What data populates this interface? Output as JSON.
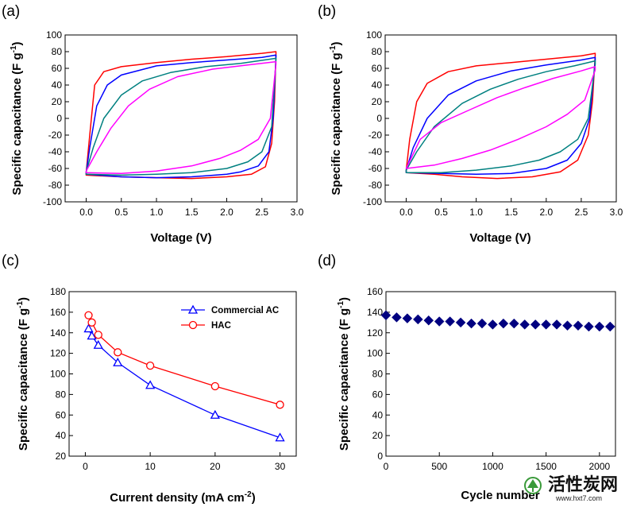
{
  "colors": {
    "red": "#ff0000",
    "blue": "#0000ff",
    "teal": "#008080",
    "magenta": "#ff00ff",
    "navy": "#000080"
  },
  "chart_data": [
    {
      "id": "a",
      "panel_label": "(a)",
      "type": "line",
      "xlabel": "Voltage (V)",
      "ylabel": "Specific capacitance (F g",
      "ylabel_sup": "-1",
      "ylabel_close": ")",
      "xlim": [
        -0.3,
        3.0
      ],
      "ylim": [
        -100,
        100
      ],
      "xticks": [
        0.0,
        0.5,
        1.0,
        1.5,
        2.0,
        2.5,
        3.0
      ],
      "xtick_labels": [
        "0.0",
        "0.5",
        "1.0",
        "1.5",
        "2.0",
        "2.5",
        "3.0"
      ],
      "yticks": [
        -100,
        -80,
        -60,
        -40,
        -20,
        0,
        20,
        40,
        60,
        80,
        100
      ],
      "ytick_labels": [
        "-100",
        "-80",
        "-60",
        "-40",
        "-20",
        "0",
        "20",
        "40",
        "60",
        "80",
        "100"
      ],
      "series": [
        {
          "color": "#ff0000",
          "upper": [
            [
              0,
              -65
            ],
            [
              0.05,
              -20
            ],
            [
              0.12,
              40
            ],
            [
              0.25,
              56
            ],
            [
              0.5,
              62
            ],
            [
              1.0,
              67
            ],
            [
              1.5,
              71
            ],
            [
              2.0,
              74
            ],
            [
              2.5,
              78
            ],
            [
              2.7,
              80
            ]
          ],
          "lower": [
            [
              2.7,
              78
            ],
            [
              2.68,
              20
            ],
            [
              2.64,
              -30
            ],
            [
              2.55,
              -58
            ],
            [
              2.35,
              -67
            ],
            [
              2.0,
              -70
            ],
            [
              1.5,
              -72
            ],
            [
              1.0,
              -71
            ],
            [
              0.5,
              -70
            ],
            [
              0,
              -68
            ]
          ]
        },
        {
          "color": "#0000ff",
          "upper": [
            [
              0,
              -65
            ],
            [
              0.05,
              -35
            ],
            [
              0.15,
              15
            ],
            [
              0.3,
              40
            ],
            [
              0.5,
              52
            ],
            [
              1.0,
              63
            ],
            [
              1.5,
              67
            ],
            [
              2.0,
              70
            ],
            [
              2.5,
              73
            ],
            [
              2.7,
              76
            ]
          ],
          "lower": [
            [
              2.7,
              74
            ],
            [
              2.66,
              0
            ],
            [
              2.6,
              -40
            ],
            [
              2.45,
              -57
            ],
            [
              2.2,
              -64
            ],
            [
              2.0,
              -67
            ],
            [
              1.5,
              -70
            ],
            [
              1.0,
              -71
            ],
            [
              0.5,
              -70
            ],
            [
              0,
              -67
            ]
          ]
        },
        {
          "color": "#008080",
          "upper": [
            [
              0,
              -64
            ],
            [
              0.1,
              -35
            ],
            [
              0.25,
              0
            ],
            [
              0.5,
              28
            ],
            [
              0.8,
              45
            ],
            [
              1.2,
              55
            ],
            [
              1.7,
              62
            ],
            [
              2.2,
              66
            ],
            [
              2.7,
              72
            ]
          ],
          "lower": [
            [
              2.7,
              70
            ],
            [
              2.64,
              -10
            ],
            [
              2.5,
              -40
            ],
            [
              2.3,
              -52
            ],
            [
              2.0,
              -60
            ],
            [
              1.5,
              -65
            ],
            [
              1.0,
              -67
            ],
            [
              0.5,
              -68
            ],
            [
              0,
              -67
            ]
          ]
        },
        {
          "color": "#ff00ff",
          "upper": [
            [
              0,
              -63
            ],
            [
              0.15,
              -40
            ],
            [
              0.35,
              -12
            ],
            [
              0.6,
              15
            ],
            [
              0.9,
              35
            ],
            [
              1.3,
              50
            ],
            [
              1.8,
              59
            ],
            [
              2.3,
              64
            ],
            [
              2.7,
              68
            ]
          ],
          "lower": [
            [
              2.7,
              65
            ],
            [
              2.62,
              0
            ],
            [
              2.45,
              -25
            ],
            [
              2.2,
              -38
            ],
            [
              1.9,
              -48
            ],
            [
              1.5,
              -57
            ],
            [
              1.0,
              -63
            ],
            [
              0.5,
              -66
            ],
            [
              0,
              -65
            ]
          ]
        }
      ]
    },
    {
      "id": "b",
      "panel_label": "(b)",
      "type": "line",
      "xlabel": "Voltage (V)",
      "ylabel": "Specific capacitance (F g",
      "ylabel_sup": "-1",
      "ylabel_close": ")",
      "xlim": [
        -0.3,
        3.0
      ],
      "ylim": [
        -100,
        100
      ],
      "xticks": [
        0.0,
        0.5,
        1.0,
        1.5,
        2.0,
        2.5,
        3.0
      ],
      "xtick_labels": [
        "0.0",
        "0.5",
        "1.0",
        "1.5",
        "2.0",
        "2.5",
        "3.0"
      ],
      "yticks": [
        -100,
        -80,
        -60,
        -40,
        -20,
        0,
        20,
        40,
        60,
        80,
        100
      ],
      "ytick_labels": [
        "-100",
        "-80",
        "-60",
        "-40",
        "-20",
        "0",
        "20",
        "40",
        "60",
        "80",
        "100"
      ],
      "series": [
        {
          "color": "#ff0000",
          "upper": [
            [
              0,
              -62
            ],
            [
              0.05,
              -25
            ],
            [
              0.15,
              20
            ],
            [
              0.3,
              42
            ],
            [
              0.6,
              56
            ],
            [
              1.0,
              63
            ],
            [
              1.5,
              67
            ],
            [
              2.0,
              71
            ],
            [
              2.5,
              75
            ],
            [
              2.7,
              78
            ]
          ],
          "lower": [
            [
              2.7,
              76
            ],
            [
              2.66,
              20
            ],
            [
              2.6,
              -20
            ],
            [
              2.45,
              -50
            ],
            [
              2.2,
              -64
            ],
            [
              1.8,
              -70
            ],
            [
              1.3,
              -72
            ],
            [
              0.8,
              -70
            ],
            [
              0.4,
              -67
            ],
            [
              0,
              -65
            ]
          ]
        },
        {
          "color": "#0000ff",
          "upper": [
            [
              0,
              -62
            ],
            [
              0.1,
              -35
            ],
            [
              0.3,
              0
            ],
            [
              0.6,
              28
            ],
            [
              1.0,
              45
            ],
            [
              1.5,
              57
            ],
            [
              2.0,
              64
            ],
            [
              2.5,
              70
            ],
            [
              2.7,
              73
            ]
          ],
          "lower": [
            [
              2.7,
              70
            ],
            [
              2.62,
              0
            ],
            [
              2.5,
              -30
            ],
            [
              2.3,
              -50
            ],
            [
              2.0,
              -60
            ],
            [
              1.5,
              -66
            ],
            [
              1.0,
              -67
            ],
            [
              0.5,
              -66
            ],
            [
              0,
              -65
            ]
          ]
        },
        {
          "color": "#008080",
          "upper": [
            [
              0,
              -62
            ],
            [
              0.15,
              -40
            ],
            [
              0.4,
              -10
            ],
            [
              0.8,
              18
            ],
            [
              1.2,
              35
            ],
            [
              1.6,
              47
            ],
            [
              2.0,
              56
            ],
            [
              2.4,
              63
            ],
            [
              2.7,
              69
            ]
          ],
          "lower": [
            [
              2.7,
              65
            ],
            [
              2.6,
              0
            ],
            [
              2.45,
              -25
            ],
            [
              2.2,
              -40
            ],
            [
              1.9,
              -50
            ],
            [
              1.5,
              -57
            ],
            [
              1.0,
              -62
            ],
            [
              0.5,
              -65
            ],
            [
              0,
              -65
            ]
          ]
        },
        {
          "color": "#ff00ff",
          "upper": [
            [
              0,
              -60
            ],
            [
              0.2,
              -25
            ],
            [
              0.5,
              -5
            ],
            [
              0.9,
              10
            ],
            [
              1.3,
              25
            ],
            [
              1.7,
              37
            ],
            [
              2.1,
              48
            ],
            [
              2.5,
              57
            ],
            [
              2.7,
              62
            ]
          ],
          "lower": [
            [
              2.7,
              58
            ],
            [
              2.55,
              22
            ],
            [
              2.3,
              5
            ],
            [
              2.0,
              -10
            ],
            [
              1.6,
              -25
            ],
            [
              1.2,
              -38
            ],
            [
              0.8,
              -48
            ],
            [
              0.4,
              -56
            ],
            [
              0,
              -60
            ]
          ]
        }
      ]
    },
    {
      "id": "c",
      "panel_label": "(c)",
      "type": "line",
      "xlabel": "Current density (mA cm",
      "xlabel_sup": "-2",
      "xlabel_close": ")",
      "ylabel": "Specific capacitance (F g",
      "ylabel_sup": "-1",
      "ylabel_close": ")",
      "xlim": [
        -2.5,
        32.5
      ],
      "ylim": [
        20,
        180
      ],
      "xticks": [
        0,
        10,
        20,
        30
      ],
      "xtick_labels": [
        "0",
        "10",
        "20",
        "30"
      ],
      "yticks": [
        20,
        40,
        60,
        80,
        100,
        120,
        140,
        160,
        180
      ],
      "ytick_labels": [
        "20",
        "40",
        "60",
        "80",
        "100",
        "120",
        "140",
        "160",
        "180"
      ],
      "legend": {
        "position": "top-right"
      },
      "series": [
        {
          "name": "Commercial AC",
          "color": "#0000ff",
          "marker": "triangle",
          "x": [
            0.5,
            1,
            2,
            5,
            10,
            20,
            30
          ],
          "y": [
            144,
            137,
            128,
            111,
            89,
            60,
            38
          ]
        },
        {
          "name": "HAC",
          "color": "#ff0000",
          "marker": "circle",
          "x": [
            0.5,
            1,
            2,
            5,
            10,
            20,
            30
          ],
          "y": [
            157,
            150,
            138,
            121,
            108,
            88,
            70
          ]
        }
      ]
    },
    {
      "id": "d",
      "panel_label": "(d)",
      "type": "scatter",
      "xlabel": "Cycle number",
      "ylabel": "Specific capacitance (F g",
      "ylabel_sup": "-1",
      "ylabel_close": ")",
      "xlim": [
        0,
        2150
      ],
      "ylim": [
        0,
        160
      ],
      "xticks": [
        0,
        500,
        1000,
        1500,
        2000
      ],
      "xtick_labels": [
        "0",
        "500",
        "1000",
        "1500",
        "2000"
      ],
      "yticks": [
        0,
        20,
        40,
        60,
        80,
        100,
        120,
        140,
        160
      ],
      "ytick_labels": [
        "0",
        "20",
        "40",
        "60",
        "80",
        "100",
        "120",
        "140",
        "160"
      ],
      "series": [
        {
          "color": "#000080",
          "marker": "diamond",
          "x": [
            0,
            100,
            200,
            300,
            400,
            500,
            600,
            700,
            800,
            900,
            1000,
            1100,
            1200,
            1300,
            1400,
            1500,
            1600,
            1700,
            1800,
            1900,
            2000,
            2100
          ],
          "y": [
            137,
            135,
            134,
            133,
            132,
            131,
            131,
            130,
            129,
            129,
            128,
            129,
            129,
            128,
            128,
            128,
            128,
            127,
            127,
            126,
            126,
            126
          ]
        }
      ]
    }
  ],
  "watermark": {
    "chinese": "活性炭网",
    "url": "www.hxt7.com"
  }
}
